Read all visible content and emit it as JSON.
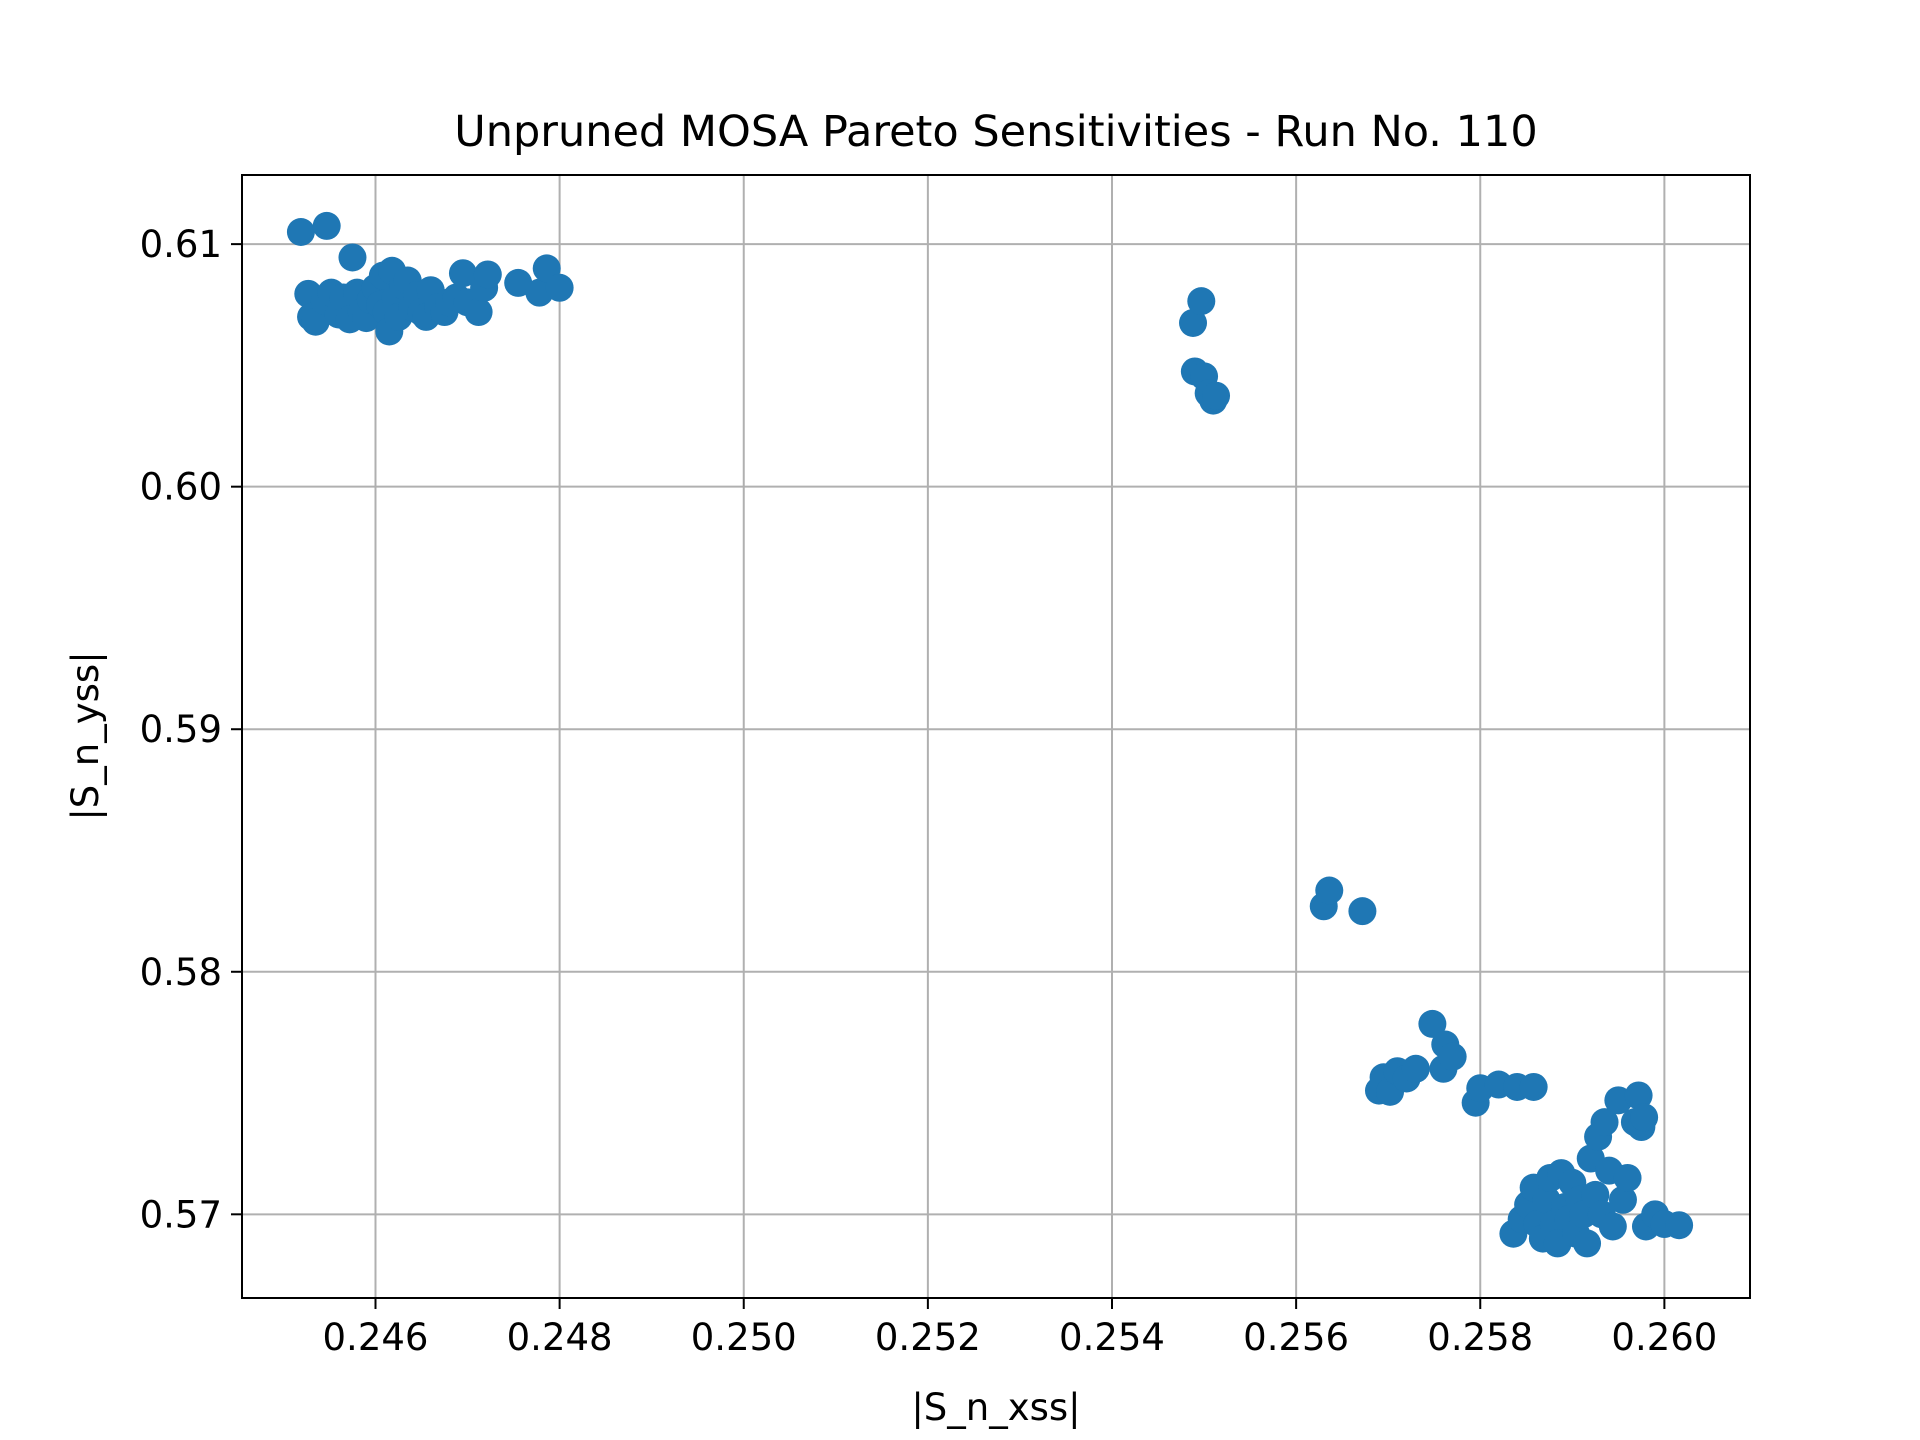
{
  "chart_data": {
    "type": "scatter",
    "title": "Unpruned MOSA Pareto Sensitivities - Run No. 110",
    "xlabel": "|S_n_xss|",
    "ylabel": "|S_n_yss|",
    "xlim": [
      0.24455,
      0.26093
    ],
    "ylim": [
      0.56655,
      0.61285
    ],
    "xticks": [
      0.246,
      0.248,
      0.25,
      0.252,
      0.254,
      0.256,
      0.258,
      0.26
    ],
    "xtick_labels": [
      "0.246",
      "0.248",
      "0.250",
      "0.252",
      "0.254",
      "0.256",
      "0.258",
      "0.260"
    ],
    "yticks": [
      0.57,
      0.58,
      0.59,
      0.6,
      0.61
    ],
    "ytick_labels": [
      "0.57",
      "0.58",
      "0.59",
      "0.60",
      "0.61"
    ],
    "grid": true,
    "marker_color": "#1f77b4",
    "series": [
      {
        "points": [
          [
            0.24519,
            0.6105
          ],
          [
            0.24547,
            0.61075
          ],
          [
            0.24575,
            0.60945
          ],
          [
            0.24527,
            0.60795
          ],
          [
            0.2453,
            0.607
          ],
          [
            0.24535,
            0.6068
          ],
          [
            0.24545,
            0.60765
          ],
          [
            0.24552,
            0.608
          ],
          [
            0.2456,
            0.6071
          ],
          [
            0.24565,
            0.6078
          ],
          [
            0.24572,
            0.6069
          ],
          [
            0.2458,
            0.608
          ],
          [
            0.24585,
            0.6072
          ],
          [
            0.2459,
            0.60695
          ],
          [
            0.24595,
            0.6077
          ],
          [
            0.246,
            0.6082
          ],
          [
            0.24605,
            0.6075
          ],
          [
            0.24608,
            0.6087
          ],
          [
            0.24612,
            0.6072
          ],
          [
            0.24615,
            0.6064
          ],
          [
            0.24618,
            0.6089
          ],
          [
            0.24622,
            0.6078
          ],
          [
            0.24625,
            0.607
          ],
          [
            0.2463,
            0.6083
          ],
          [
            0.24635,
            0.6085
          ],
          [
            0.2464,
            0.6074
          ],
          [
            0.24645,
            0.6079
          ],
          [
            0.2465,
            0.6072
          ],
          [
            0.24655,
            0.607
          ],
          [
            0.2466,
            0.6081
          ],
          [
            0.24668,
            0.6074
          ],
          [
            0.24675,
            0.6072
          ],
          [
            0.2468,
            0.6076
          ],
          [
            0.24688,
            0.6078
          ],
          [
            0.24695,
            0.6088
          ],
          [
            0.247,
            0.6076
          ],
          [
            0.24712,
            0.6072
          ],
          [
            0.24718,
            0.6082
          ],
          [
            0.24722,
            0.60875
          ],
          [
            0.24755,
            0.6084
          ],
          [
            0.24778,
            0.608
          ],
          [
            0.24786,
            0.609
          ],
          [
            0.248,
            0.6082
          ],
          [
            0.25488,
            0.60675
          ],
          [
            0.25497,
            0.60765
          ],
          [
            0.2549,
            0.60475
          ],
          [
            0.255,
            0.60455
          ],
          [
            0.25505,
            0.60385
          ],
          [
            0.2551,
            0.60355
          ],
          [
            0.25513,
            0.60375
          ],
          [
            0.2563,
            0.5827
          ],
          [
            0.25636,
            0.58335
          ],
          [
            0.25672,
            0.5825
          ],
          [
            0.2569,
            0.5751
          ],
          [
            0.25695,
            0.57565
          ],
          [
            0.25702,
            0.57505
          ],
          [
            0.2571,
            0.5759
          ],
          [
            0.2572,
            0.5756
          ],
          [
            0.2573,
            0.576
          ],
          [
            0.25748,
            0.57785
          ],
          [
            0.2576,
            0.576
          ],
          [
            0.25762,
            0.577
          ],
          [
            0.2577,
            0.5765
          ],
          [
            0.25795,
            0.5746
          ],
          [
            0.258,
            0.5752
          ],
          [
            0.2582,
            0.57535
          ],
          [
            0.2584,
            0.57525
          ],
          [
            0.25858,
            0.57525
          ],
          [
            0.25836,
            0.5692
          ],
          [
            0.25845,
            0.5698
          ],
          [
            0.25852,
            0.5704
          ],
          [
            0.25858,
            0.5711
          ],
          [
            0.25862,
            0.5696
          ],
          [
            0.25868,
            0.569
          ],
          [
            0.25872,
            0.5706
          ],
          [
            0.25876,
            0.5715
          ],
          [
            0.2588,
            0.5696
          ],
          [
            0.25884,
            0.5688
          ],
          [
            0.25888,
            0.5717
          ],
          [
            0.25892,
            0.5703
          ],
          [
            0.25896,
            0.5698
          ],
          [
            0.259,
            0.5713
          ],
          [
            0.25904,
            0.5692
          ],
          [
            0.25908,
            0.5706
          ],
          [
            0.25912,
            0.57
          ],
          [
            0.25916,
            0.5688
          ],
          [
            0.2592,
            0.5723
          ],
          [
            0.25925,
            0.5708
          ],
          [
            0.25928,
            0.5732
          ],
          [
            0.25932,
            0.57
          ],
          [
            0.25935,
            0.5738
          ],
          [
            0.2594,
            0.5718
          ],
          [
            0.25944,
            0.5695
          ],
          [
            0.2595,
            0.5747
          ],
          [
            0.25955,
            0.5706
          ],
          [
            0.2596,
            0.5715
          ],
          [
            0.25968,
            0.5738
          ],
          [
            0.25972,
            0.5749
          ],
          [
            0.25975,
            0.5736
          ],
          [
            0.25978,
            0.574
          ],
          [
            0.2598,
            0.5695
          ],
          [
            0.2599,
            0.57
          ],
          [
            0.26,
            0.5696
          ],
          [
            0.26016,
            0.56955
          ]
        ]
      }
    ]
  }
}
